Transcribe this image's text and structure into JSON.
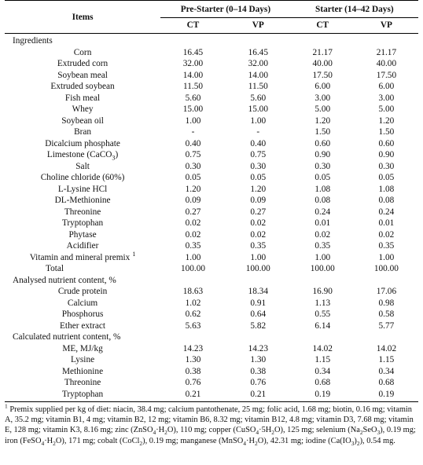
{
  "table": {
    "header": {
      "items_label": "Items",
      "pre_starter_label": "Pre-Starter (0–14 Days)",
      "starter_label": "Starter (14–42 Days)",
      "ct_label": "CT",
      "vp_label": "VP"
    },
    "sections": [
      {
        "title": "Ingredients",
        "rows": [
          {
            "name": "Corn",
            "values": [
              "16.45",
              "16.45",
              "21.17",
              "21.17"
            ]
          },
          {
            "name": "Extruded corn",
            "values": [
              "32.00",
              "32.00",
              "40.00",
              "40.00"
            ]
          },
          {
            "name": "Soybean meal",
            "values": [
              "14.00",
              "14.00",
              "17.50",
              "17.50"
            ]
          },
          {
            "name": "Extruded soybean",
            "values": [
              "11.50",
              "11.50",
              "6.00",
              "6.00"
            ]
          },
          {
            "name": "Fish meal",
            "values": [
              "5.60",
              "5.60",
              "3.00",
              "3.00"
            ]
          },
          {
            "name": "Whey",
            "values": [
              "15.00",
              "15.00",
              "5.00",
              "5.00"
            ]
          },
          {
            "name": "Soybean oil",
            "values": [
              "1.00",
              "1.00",
              "1.20",
              "1.20"
            ]
          },
          {
            "name": "Bran",
            "values": [
              "-",
              "-",
              "1.50",
              "1.50"
            ]
          },
          {
            "name": "Dicalcium phosphate",
            "values": [
              "0.40",
              "0.40",
              "0.60",
              "0.60"
            ]
          },
          {
            "name_pre": "Limestone (CaCO",
            "name_sub": "3",
            "name_post": ")",
            "values": [
              "0.75",
              "0.75",
              "0.90",
              "0.90"
            ]
          },
          {
            "name": "Salt",
            "values": [
              "0.30",
              "0.30",
              "0.30",
              "0.30"
            ]
          },
          {
            "name": "Choline chloride (60%)",
            "values": [
              "0.05",
              "0.05",
              "0.05",
              "0.05"
            ]
          },
          {
            "name": "L-Lysine HCl",
            "values": [
              "1.20",
              "1.20",
              "1.08",
              "1.08"
            ]
          },
          {
            "name": "DL-Methionine",
            "values": [
              "0.09",
              "0.09",
              "0.08",
              "0.08"
            ]
          },
          {
            "name": "Threonine",
            "values": [
              "0.27",
              "0.27",
              "0.24",
              "0.24"
            ]
          },
          {
            "name": "Tryptophan",
            "values": [
              "0.02",
              "0.02",
              "0.01",
              "0.01"
            ]
          },
          {
            "name": "Phytase",
            "values": [
              "0.02",
              "0.02",
              "0.02",
              "0.02"
            ]
          },
          {
            "name": "Acidifier",
            "values": [
              "0.35",
              "0.35",
              "0.35",
              "0.35"
            ]
          },
          {
            "name": "Vitamin and mineral premix",
            "sup": "1",
            "values": [
              "1.00",
              "1.00",
              "1.00",
              "1.00"
            ]
          },
          {
            "name": "Total",
            "values": [
              "100.00",
              "100.00",
              "100.00",
              "100.00"
            ],
            "left": true
          }
        ]
      },
      {
        "title": "Analysed nutrient content, %",
        "rows": [
          {
            "name": "Crude protein",
            "values": [
              "18.63",
              "18.34",
              "16.90",
              "17.06"
            ]
          },
          {
            "name": "Calcium",
            "values": [
              "1.02",
              "0.91",
              "1.13",
              "0.98"
            ]
          },
          {
            "name": "Phosphorus",
            "values": [
              "0.62",
              "0.64",
              "0.55",
              "0.58"
            ]
          },
          {
            "name": "Ether extract",
            "values": [
              "5.63",
              "5.82",
              "6.14",
              "5.77"
            ]
          }
        ]
      },
      {
        "title": "Calculated nutrient content, %",
        "rows": [
          {
            "name": "ME, MJ/kg",
            "values": [
              "14.23",
              "14.23",
              "14.02",
              "14.02"
            ]
          },
          {
            "name": "Lysine",
            "values": [
              "1.30",
              "1.30",
              "1.15",
              "1.15"
            ]
          },
          {
            "name": "Methionine",
            "values": [
              "0.38",
              "0.38",
              "0.34",
              "0.34"
            ]
          },
          {
            "name": "Threonine",
            "values": [
              "0.76",
              "0.76",
              "0.68",
              "0.68"
            ]
          },
          {
            "name": "Tryptophan",
            "values": [
              "0.21",
              "0.21",
              "0.19",
              "0.19"
            ]
          }
        ]
      }
    ]
  },
  "footnote": {
    "sup": "1",
    "parts": [
      " Premix supplied per kg of diet: niacin, 38.4 mg; calcium pantothenate, 25 mg; folic acid, 1.68 mg; biotin, 0.16 mg; vitamin A, 35.2 mg; vitamin B1, 4 mg; vitamin B2, 12 mg; vitamin B6, 8.32 mg; vitamin B12, 4.8 mg; vitamin D3, 7.68 mg; vitamin E, 128 mg; vitamin K3, 8.16 mg; zinc (ZnSO",
      "4",
      "·H",
      "2",
      "O), 110 mg; copper (CuSO",
      "4",
      "·5H",
      "2",
      "O), 125 mg; selenium (Na",
      "2",
      "SeO",
      "3",
      "), 0.19 mg; iron (FeSO",
      "4",
      "·H",
      "2",
      "O), 171 mg; cobalt (CoCl",
      "2",
      "), 0.19 mg; manganese (MnSO",
      "4",
      "·H",
      "2",
      "O), 42.31 mg; iodine (Ca(IO",
      "3",
      ")",
      "2",
      "), 0.54 mg."
    ]
  }
}
